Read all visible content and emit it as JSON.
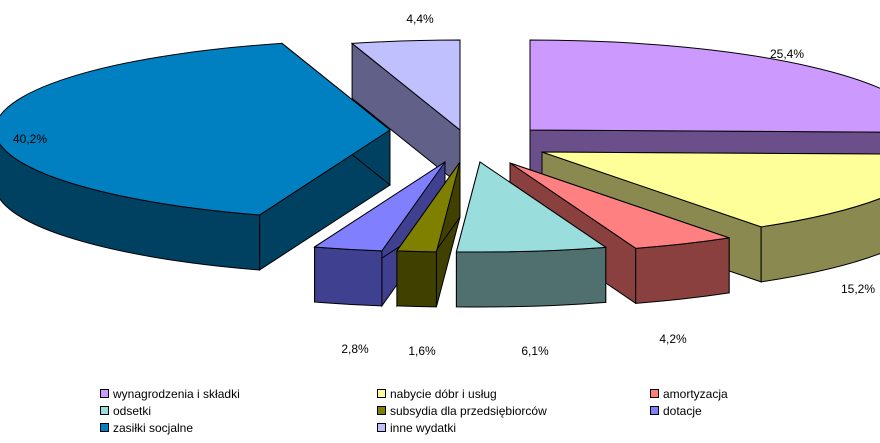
{
  "chart_data": {
    "type": "pie",
    "title": "",
    "categories": [
      "wynagrodzenia i składki",
      "nabycie dóbr i usług",
      "amortyzacja",
      "odsetki",
      "subsydia dla przedsiębiorców",
      "dotacje",
      "zasiłki socjalne",
      "inne wydatki"
    ],
    "values": [
      25.4,
      15.2,
      4.2,
      6.1,
      1.6,
      2.8,
      40.2,
      4.4
    ],
    "value_labels": [
      "25,4%",
      "15,2%",
      "4,2%",
      "6,1%",
      "1,6%",
      "2,8%",
      "40,2%",
      "4,4%"
    ],
    "colors": [
      "#cc99ff",
      "#ffff99",
      "#ff8080",
      "#99dddd",
      "#808000",
      "#8080ff",
      "#0080c0",
      "#c0c0ff"
    ],
    "side_colors": [
      "#6a4f8a",
      "#8a8a50",
      "#8b4040",
      "#507070",
      "#404000",
      "#404090",
      "#004060",
      "#606088"
    ],
    "style": "3d-exploded",
    "legend": "bottom"
  }
}
